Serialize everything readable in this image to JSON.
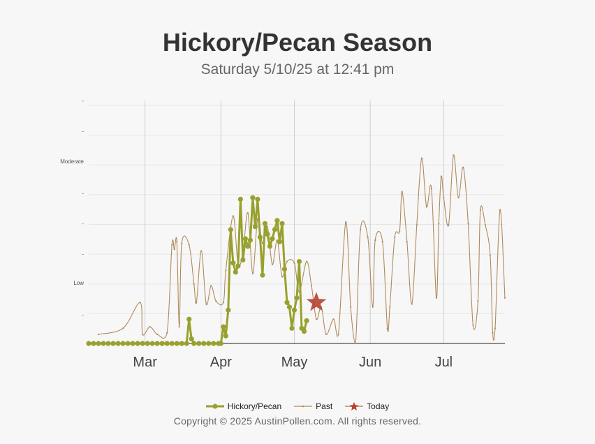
{
  "title": "Hickory/Pecan Season",
  "subtitle": "Saturday 5/10/25 at 12:41 pm",
  "copyright": "Copyright © 2025 AustinPollen.com.  All rights reserved.",
  "colors": {
    "current": "#98a12d",
    "past": "#b08a5e",
    "today": "#b5402f",
    "grid": "#e6e6e6",
    "month_line": "#cfcfcf"
  },
  "legend": [
    {
      "label": "Hickory/Pecan",
      "icon": "line-dot-icon",
      "color": "#98a12d"
    },
    {
      "label": "Past",
      "icon": "thin-line-icon",
      "color": "#b08a5e"
    },
    {
      "label": "Today",
      "icon": "star-icon",
      "color": "#b5402f"
    }
  ],
  "chart_data": {
    "type": "line",
    "title": "Hickory/Pecan Season",
    "subtitle": "Saturday 5/10/25 at 12:41 pm",
    "x_axis": {
      "type": "date",
      "tick_labels": [
        "Mar",
        "Apr",
        "May",
        "Jun",
        "Jul"
      ],
      "range": [
        "2025-02-06",
        "2025-07-26"
      ]
    },
    "y_axis": {
      "tick_labels": [
        "",
        "Low",
        "",
        "",
        "Moderate",
        ""
      ],
      "range": [
        0,
        8
      ]
    },
    "grid": true,
    "legend_position": "bottom",
    "series": [
      {
        "name": "Hickory/Pecan",
        "color": "#98a12d",
        "points": [
          [
            "2025-02-06",
            0
          ],
          [
            "2025-02-08",
            0
          ],
          [
            "2025-02-10",
            0
          ],
          [
            "2025-02-12",
            0
          ],
          [
            "2025-02-14",
            0
          ],
          [
            "2025-02-16",
            0
          ],
          [
            "2025-02-18",
            0
          ],
          [
            "2025-02-20",
            0
          ],
          [
            "2025-02-22",
            0
          ],
          [
            "2025-02-24",
            0
          ],
          [
            "2025-02-26",
            0
          ],
          [
            "2025-02-28",
            0
          ],
          [
            "2025-03-02",
            0
          ],
          [
            "2025-03-04",
            0
          ],
          [
            "2025-03-06",
            0
          ],
          [
            "2025-03-08",
            0
          ],
          [
            "2025-03-10",
            0
          ],
          [
            "2025-03-12",
            0
          ],
          [
            "2025-03-14",
            0
          ],
          [
            "2025-03-16",
            0
          ],
          [
            "2025-03-18",
            0
          ],
          [
            "2025-03-19",
            0.8
          ],
          [
            "2025-03-20",
            0.15
          ],
          [
            "2025-03-21",
            0
          ],
          [
            "2025-03-23",
            0
          ],
          [
            "2025-03-25",
            0
          ],
          [
            "2025-03-27",
            0
          ],
          [
            "2025-03-29",
            0
          ],
          [
            "2025-03-31",
            0
          ],
          [
            "2025-04-01",
            0
          ],
          [
            "2025-04-02",
            0.55
          ],
          [
            "2025-04-03",
            0.25
          ],
          [
            "2025-04-04",
            1.1
          ],
          [
            "2025-04-05",
            3.75
          ],
          [
            "2025-04-06",
            2.65
          ],
          [
            "2025-04-07",
            2.35
          ],
          [
            "2025-04-08",
            2.55
          ],
          [
            "2025-04-09",
            4.75
          ],
          [
            "2025-04-10",
            2.75
          ],
          [
            "2025-04-11",
            3.45
          ],
          [
            "2025-04-12",
            3.2
          ],
          [
            "2025-04-13",
            3.4
          ],
          [
            "2025-04-14",
            4.8
          ],
          [
            "2025-04-15",
            3.85
          ],
          [
            "2025-04-16",
            4.75
          ],
          [
            "2025-04-17",
            3.5
          ],
          [
            "2025-04-18",
            2.25
          ],
          [
            "2025-04-19",
            3.95
          ],
          [
            "2025-04-20",
            3.6
          ],
          [
            "2025-04-21",
            3.2
          ],
          [
            "2025-04-22",
            3.45
          ],
          [
            "2025-04-23",
            3.75
          ],
          [
            "2025-04-24",
            4.05
          ],
          [
            "2025-04-25",
            3.35
          ],
          [
            "2025-04-26",
            3.95
          ],
          [
            "2025-04-27",
            2.45
          ],
          [
            "2025-04-28",
            1.35
          ],
          [
            "2025-04-29",
            1.2
          ],
          [
            "2025-04-30",
            0.5
          ],
          [
            "2025-05-01",
            1.1
          ],
          [
            "2025-05-02",
            1.5
          ],
          [
            "2025-05-03",
            2.7
          ],
          [
            "2025-05-04",
            0.5
          ],
          [
            "2025-05-05",
            0.4
          ],
          [
            "2025-05-06",
            0.75
          ]
        ]
      },
      {
        "name": "Past",
        "color": "#b08a5e",
        "points": [
          [
            "2025-02-10",
            0.3
          ],
          [
            "2025-02-20",
            0.5
          ],
          [
            "2025-02-27",
            1.35
          ],
          [
            "2025-02-28",
            0.3
          ],
          [
            "2025-03-03",
            0.55
          ],
          [
            "2025-03-06",
            0.3
          ],
          [
            "2025-03-10",
            0.35
          ],
          [
            "2025-03-12",
            3.25
          ],
          [
            "2025-03-13",
            3.1
          ],
          [
            "2025-03-14",
            3.35
          ],
          [
            "2025-03-15",
            0.55
          ],
          [
            "2025-03-16",
            3.3
          ],
          [
            "2025-03-19",
            3.25
          ],
          [
            "2025-03-21",
            1.95
          ],
          [
            "2025-03-22",
            1.35
          ],
          [
            "2025-03-24",
            3.05
          ],
          [
            "2025-03-26",
            1.3
          ],
          [
            "2025-03-28",
            1.9
          ],
          [
            "2025-03-30",
            1.4
          ],
          [
            "2025-04-02",
            1.35
          ],
          [
            "2025-04-03",
            2.4
          ],
          [
            "2025-04-06",
            4.2
          ],
          [
            "2025-04-08",
            2.6
          ],
          [
            "2025-04-10",
            3.0
          ],
          [
            "2025-04-12",
            4.3
          ],
          [
            "2025-04-14",
            2.3
          ],
          [
            "2025-04-16",
            4.1
          ],
          [
            "2025-04-18",
            3.3
          ],
          [
            "2025-04-20",
            3.85
          ],
          [
            "2025-04-22",
            2.6
          ],
          [
            "2025-04-24",
            3.4
          ],
          [
            "2025-04-26",
            2.2
          ],
          [
            "2025-04-28",
            2.7
          ],
          [
            "2025-05-01",
            2.65
          ],
          [
            "2025-05-03",
            1.7
          ],
          [
            "2025-05-06",
            2.7
          ],
          [
            "2025-05-08",
            1.9
          ],
          [
            "2025-05-10",
            0.8
          ],
          [
            "2025-05-12",
            1.2
          ],
          [
            "2025-05-14",
            0.3
          ],
          [
            "2025-05-17",
            0.8
          ],
          [
            "2025-05-19",
            0.3
          ],
          [
            "2025-05-22",
            4.0
          ],
          [
            "2025-05-24",
            1.2
          ],
          [
            "2025-05-26",
            0
          ],
          [
            "2025-05-28",
            3.75
          ],
          [
            "2025-05-31",
            3.5
          ],
          [
            "2025-06-02",
            1.2
          ],
          [
            "2025-06-03",
            3.4
          ],
          [
            "2025-06-06",
            3.35
          ],
          [
            "2025-06-08",
            0.5
          ],
          [
            "2025-06-09",
            1.2
          ],
          [
            "2025-06-11",
            3.5
          ],
          [
            "2025-06-13",
            3.7
          ],
          [
            "2025-06-14",
            5.0
          ],
          [
            "2025-06-16",
            3.35
          ],
          [
            "2025-06-18",
            1.3
          ],
          [
            "2025-06-20",
            3.9
          ],
          [
            "2025-06-22",
            6.1
          ],
          [
            "2025-06-24",
            4.5
          ],
          [
            "2025-06-26",
            5.1
          ],
          [
            "2025-06-28",
            1.5
          ],
          [
            "2025-06-29",
            3.95
          ],
          [
            "2025-06-30",
            5.5
          ],
          [
            "2025-07-01",
            4.8
          ],
          [
            "2025-07-03",
            3.9
          ],
          [
            "2025-07-05",
            6.2
          ],
          [
            "2025-07-07",
            4.8
          ],
          [
            "2025-07-09",
            5.8
          ],
          [
            "2025-07-11",
            3.95
          ],
          [
            "2025-07-13",
            0.6
          ],
          [
            "2025-07-15",
            1.4
          ],
          [
            "2025-07-16",
            4.4
          ],
          [
            "2025-07-18",
            3.9
          ],
          [
            "2025-07-20",
            2.9
          ],
          [
            "2025-07-21",
            0.35
          ],
          [
            "2025-07-22",
            0.5
          ],
          [
            "2025-07-24",
            4.4
          ],
          [
            "2025-07-26",
            1.5
          ]
        ]
      }
    ],
    "today": {
      "date": "2025-05-10",
      "value": 1.35
    }
  }
}
